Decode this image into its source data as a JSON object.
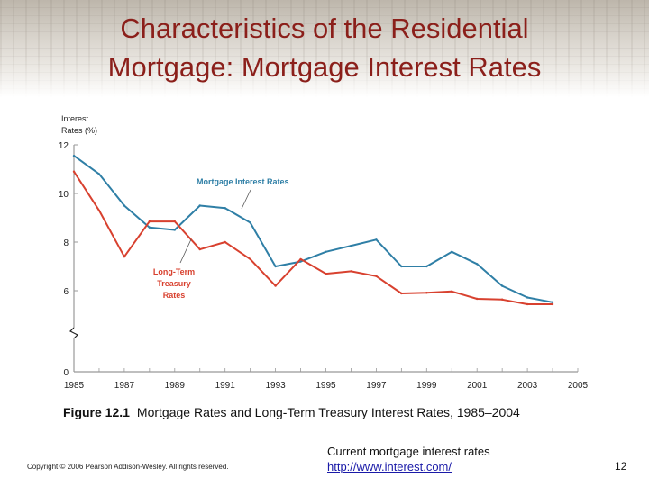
{
  "slide": {
    "title_line1": "Characteristics of the Residential",
    "title_line2": "Mortgage: Mortgage Interest Rates",
    "caption_label": "Figure 12.1",
    "caption_text": "Mortgage Rates and Long-Term Treasury Interest Rates, 1985–2004",
    "copyright": "Copyright © 2006 Pearson Addison-Wesley. All rights reserved.",
    "current_rates_text": "Current mortgage interest rates",
    "current_rates_link": "http://www.interest.com/",
    "slide_number": "12"
  },
  "colors": {
    "title": "#8b1f1a",
    "mortgage_series": "#2f7fa6",
    "treasury_series": "#d8412f",
    "axis": "#999999"
  },
  "chart_data": {
    "type": "line",
    "ylabel_line1": "Interest",
    "ylabel_line2": "Rates (%)",
    "y_ticks": [
      "12",
      "10",
      "8",
      "6",
      "0"
    ],
    "x_ticks": [
      "1985",
      "1987",
      "1989",
      "1991",
      "1993",
      "1995",
      "1997",
      "1999",
      "2001",
      "2003",
      "2005"
    ],
    "ylim": [
      0,
      12
    ],
    "xlim": [
      1985,
      2005
    ],
    "axis_break": "between 0 and 6",
    "series": [
      {
        "name": "Mortgage Interest Rates",
        "label": "Mortgage Interest Rates",
        "x": [
          1985,
          1986,
          1987,
          1988,
          1989,
          1990,
          1991,
          1992,
          1993,
          1994,
          1995,
          1996,
          1997,
          1998,
          1999,
          2000,
          2001,
          2002,
          2003,
          2004
        ],
        "values": [
          11.55,
          10.8,
          9.5,
          8.6,
          8.5,
          9.5,
          9.4,
          8.8,
          7.0,
          7.2,
          7.6,
          7.85,
          8.1,
          7.0,
          7.0,
          7.6,
          7.1,
          6.2,
          5.5,
          5.15
        ]
      },
      {
        "name": "Long-Term Treasury Rates",
        "label_line1": "Long-Term",
        "label_line2": "Treasury",
        "label_line3": "Rates",
        "x": [
          1985,
          1986,
          1987,
          1988,
          1989,
          1990,
          1991,
          1992,
          1993,
          1994,
          1995,
          1996,
          1997,
          1998,
          1999,
          2000,
          2001,
          2002,
          2003,
          2004
        ],
        "values": [
          10.9,
          9.3,
          7.4,
          8.85,
          8.85,
          7.7,
          8.0,
          7.3,
          6.2,
          7.3,
          6.7,
          6.8,
          6.6,
          5.8,
          5.85,
          5.95,
          5.4,
          5.35,
          5.0,
          5.0
        ]
      }
    ]
  }
}
